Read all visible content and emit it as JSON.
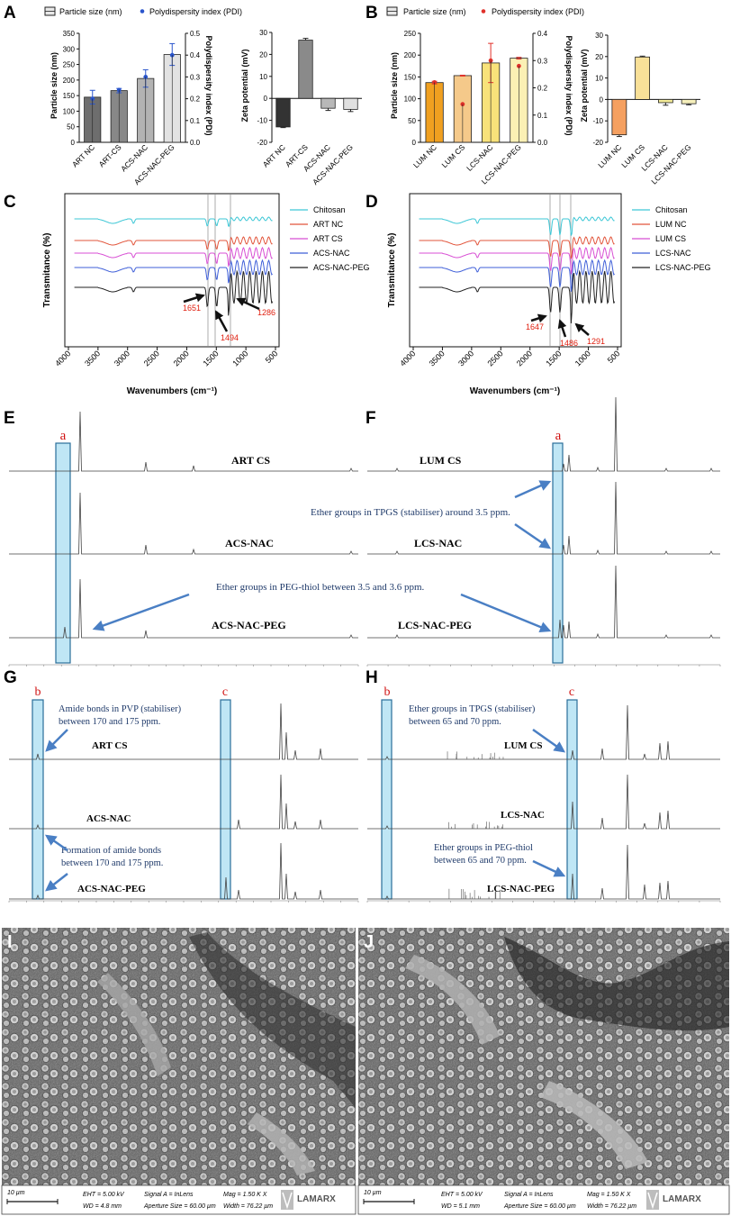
{
  "panels": {
    "A": {
      "letter": "A",
      "legend": {
        "bar": "Particle size (nm)",
        "dot": "Polydispersity index (PDI)"
      },
      "size_chart": {
        "ylabel": "Particle size (nm)",
        "y2label": "Polydispersity index (PDI)",
        "yticks": [
          "0",
          "50",
          "100",
          "150",
          "200",
          "250",
          "300",
          "350"
        ],
        "y2ticks": [
          "0.0",
          "0.1",
          "0.2",
          "0.3",
          "0.4",
          "0.5"
        ],
        "categories": [
          "ART NC",
          "ART-CS",
          "ACS-NAC",
          "ACS-NAC-PEG"
        ]
      },
      "zeta_chart": {
        "ylabel": "Zeta potential (mV)",
        "yticks": [
          "-20",
          "-10",
          "0",
          "10",
          "20",
          "30"
        ],
        "categories": [
          "ART NC",
          "ART-CS",
          "ACS-NAC",
          "ACS-NAC-PEG"
        ]
      }
    },
    "B": {
      "letter": "B",
      "legend": {
        "bar": "Particle size (nm)",
        "dot": "Polydispersity index (PDI)"
      },
      "size_chart": {
        "ylabel": "Particle size (nm)",
        "y2label": "Polydispersity index (PDI)",
        "yticks": [
          "0",
          "50",
          "100",
          "150",
          "200",
          "250"
        ],
        "y2ticks": [
          "0.0",
          "0.1",
          "0.2",
          "0.3",
          "0.4"
        ],
        "categories": [
          "LUM NC",
          "LUM CS",
          "LCS-NAC",
          "LCS-NAC-PEG"
        ]
      },
      "zeta_chart": {
        "ylabel": "Zeta potential (mV)",
        "yticks": [
          "-20",
          "-10",
          "0",
          "10",
          "20",
          "30"
        ],
        "categories": [
          "LUM NC",
          "LUM CS",
          "LCS-NAC",
          "LCS-NAC-PEG"
        ]
      }
    },
    "C": {
      "letter": "C",
      "ylabel": "Transmitance (%)",
      "xlabel": "Wavenumbers (cm⁻¹)",
      "xticks": [
        "4000",
        "3500",
        "3000",
        "2500",
        "2000",
        "1500",
        "1000",
        "500"
      ],
      "legend": [
        "Chitosan",
        "ART NC",
        "ART CS",
        "ACS-NAC",
        "ACS-NAC-PEG"
      ],
      "peaks": [
        "1651",
        "1494",
        "1286"
      ]
    },
    "D": {
      "letter": "D",
      "ylabel": "Transmitance (%)",
      "xlabel": "Wavenumbers (cm⁻¹)",
      "xticks": [
        "4000",
        "3500",
        "3000",
        "2500",
        "2000",
        "1500",
        "1000",
        "500"
      ],
      "legend": [
        "Chitosan",
        "LUM NC",
        "LUM CS",
        "LCS-NAC",
        "LCS-NAC-PEG"
      ],
      "peaks": [
        "1647",
        "1486",
        "1291"
      ]
    },
    "E": {
      "letter": "E",
      "box": "a",
      "labels": [
        "ART CS",
        "ACS-NAC",
        "ACS-NAC-PEG"
      ],
      "note": "Ether groups in PEG-thiol between 3.5 and 3.6 ppm."
    },
    "F": {
      "letter": "F",
      "box": "a",
      "labels": [
        "LUM CS",
        "LCS-NAC",
        "LCS-NAC-PEG"
      ],
      "note": "Ether groups in TPGS (stabiliser) around 3.5 ppm."
    },
    "G": {
      "letter": "G",
      "box1": "b",
      "box2": "c",
      "labels": [
        "ART CS",
        "ACS-NAC",
        "ACS-NAC-PEG"
      ],
      "note1a": "Amide bonds in PVP (stabiliser)",
      "note1b": "between 170 and 175 ppm.",
      "note2a": "Formation of amide bonds",
      "note2b": "between 170 and 175 ppm."
    },
    "H": {
      "letter": "H",
      "box1": "b",
      "box2": "c",
      "labels": [
        "LUM CS",
        "LCS-NAC",
        "LCS-NAC-PEG"
      ],
      "note1a": "Ether groups in TPGS (stabiliser)",
      "note1b": "between 65 and 70 ppm.",
      "note2a": "Ether groups in PEG-thiol",
      "note2b": "between 65 and 70 ppm."
    },
    "I": {
      "letter": "I",
      "scale": "10 µm",
      "eht": "EHT =  5.00 kV",
      "wd": "WD =  4.8 mm",
      "signal": "Signal A = InLens",
      "aperture": "Aperture Size = 60.00 µm",
      "mag": "Mag =    1.50 K X",
      "width": "Width = 76.22 µm",
      "logo": "LAMARX"
    },
    "J": {
      "letter": "J",
      "scale": "10 µm",
      "eht": "EHT =  5.00 kV",
      "wd": "WD =  5.1 mm",
      "signal": "Signal A = InLens",
      "aperture": "Aperture Size = 60.00 µm",
      "mag": "Mag =    1.50 K X",
      "width": "Width = 76.22 µm",
      "logo": "LAMARX"
    }
  },
  "colors": {
    "art_bars": [
      "#6e6e6e",
      "#888888",
      "#b3b3b3",
      "#e2e2e2"
    ],
    "art_zeta": [
      "#333333",
      "#8a8a8a",
      "#b8b8b8",
      "#e0e0e0"
    ],
    "lum_bars": [
      "#f0a020",
      "#f5c98a",
      "#f8e27a",
      "#fbf0b4"
    ],
    "lum_zeta": [
      "#f5a060",
      "#f8e098",
      "#f3eb98",
      "#f6f0bc"
    ],
    "ftir": [
      "#3dc7d6",
      "#e2553b",
      "#d84fd4",
      "#3f5fd8",
      "#222222"
    ],
    "highlight": "#bfe6f5",
    "arrow": "#4a7fc4",
    "peak_text": "#e02010"
  },
  "chart_data": [
    {
      "type": "bar",
      "panel": "A-size",
      "categories": [
        "ART NC",
        "ART-CS",
        "ACS-NAC",
        "ACS-NAC-PEG"
      ],
      "series": [
        {
          "name": "Particle size (nm)",
          "values": [
            145,
            166,
            205,
            282
          ],
          "errors": [
            22,
            7,
            28,
            35
          ]
        },
        {
          "name": "Polydispersity index (PDI)",
          "axis": "right",
          "values": [
            0.2,
            0.24,
            0.3,
            0.4
          ],
          "errors": [
            0.03,
            0.01,
            0.02,
            0.03
          ]
        }
      ],
      "ylim": [
        0,
        350
      ],
      "y2lim": [
        0,
        0.5
      ]
    },
    {
      "type": "bar",
      "panel": "A-zeta",
      "categories": [
        "ART NC",
        "ART-CS",
        "ACS-NAC",
        "ACS-NAC-PEG"
      ],
      "values": [
        -13,
        26.5,
        -4.5,
        -5
      ],
      "errors": [
        0.3,
        0.8,
        1,
        1
      ],
      "ylim": [
        -20,
        30
      ]
    },
    {
      "type": "bar",
      "panel": "B-size",
      "categories": [
        "LUM NC",
        "LUM CS",
        "LCS-NAC",
        "LCS-NAC-PEG"
      ],
      "series": [
        {
          "name": "Particle size (nm)",
          "values": [
            137,
            153,
            182,
            193
          ],
          "errors": [
            3,
            1,
            45,
            2
          ]
        },
        {
          "name": "Polydispersity index (PDI)",
          "axis": "right",
          "values": [
            0.22,
            0.14,
            0.3,
            0.28
          ],
          "errors": [
            0.005,
            0.03,
            0.02,
            0.005
          ]
        }
      ],
      "ylim": [
        0,
        250
      ],
      "y2lim": [
        0,
        0.4
      ]
    },
    {
      "type": "bar",
      "panel": "B-zeta",
      "categories": [
        "LUM NC",
        "LUM CS",
        "LCS-NAC",
        "LCS-NAC-PEG"
      ],
      "values": [
        -16.5,
        19.8,
        -1.5,
        -2
      ],
      "errors": [
        0.8,
        0.4,
        1.2,
        0.5
      ],
      "ylim": [
        -20,
        30
      ]
    }
  ]
}
